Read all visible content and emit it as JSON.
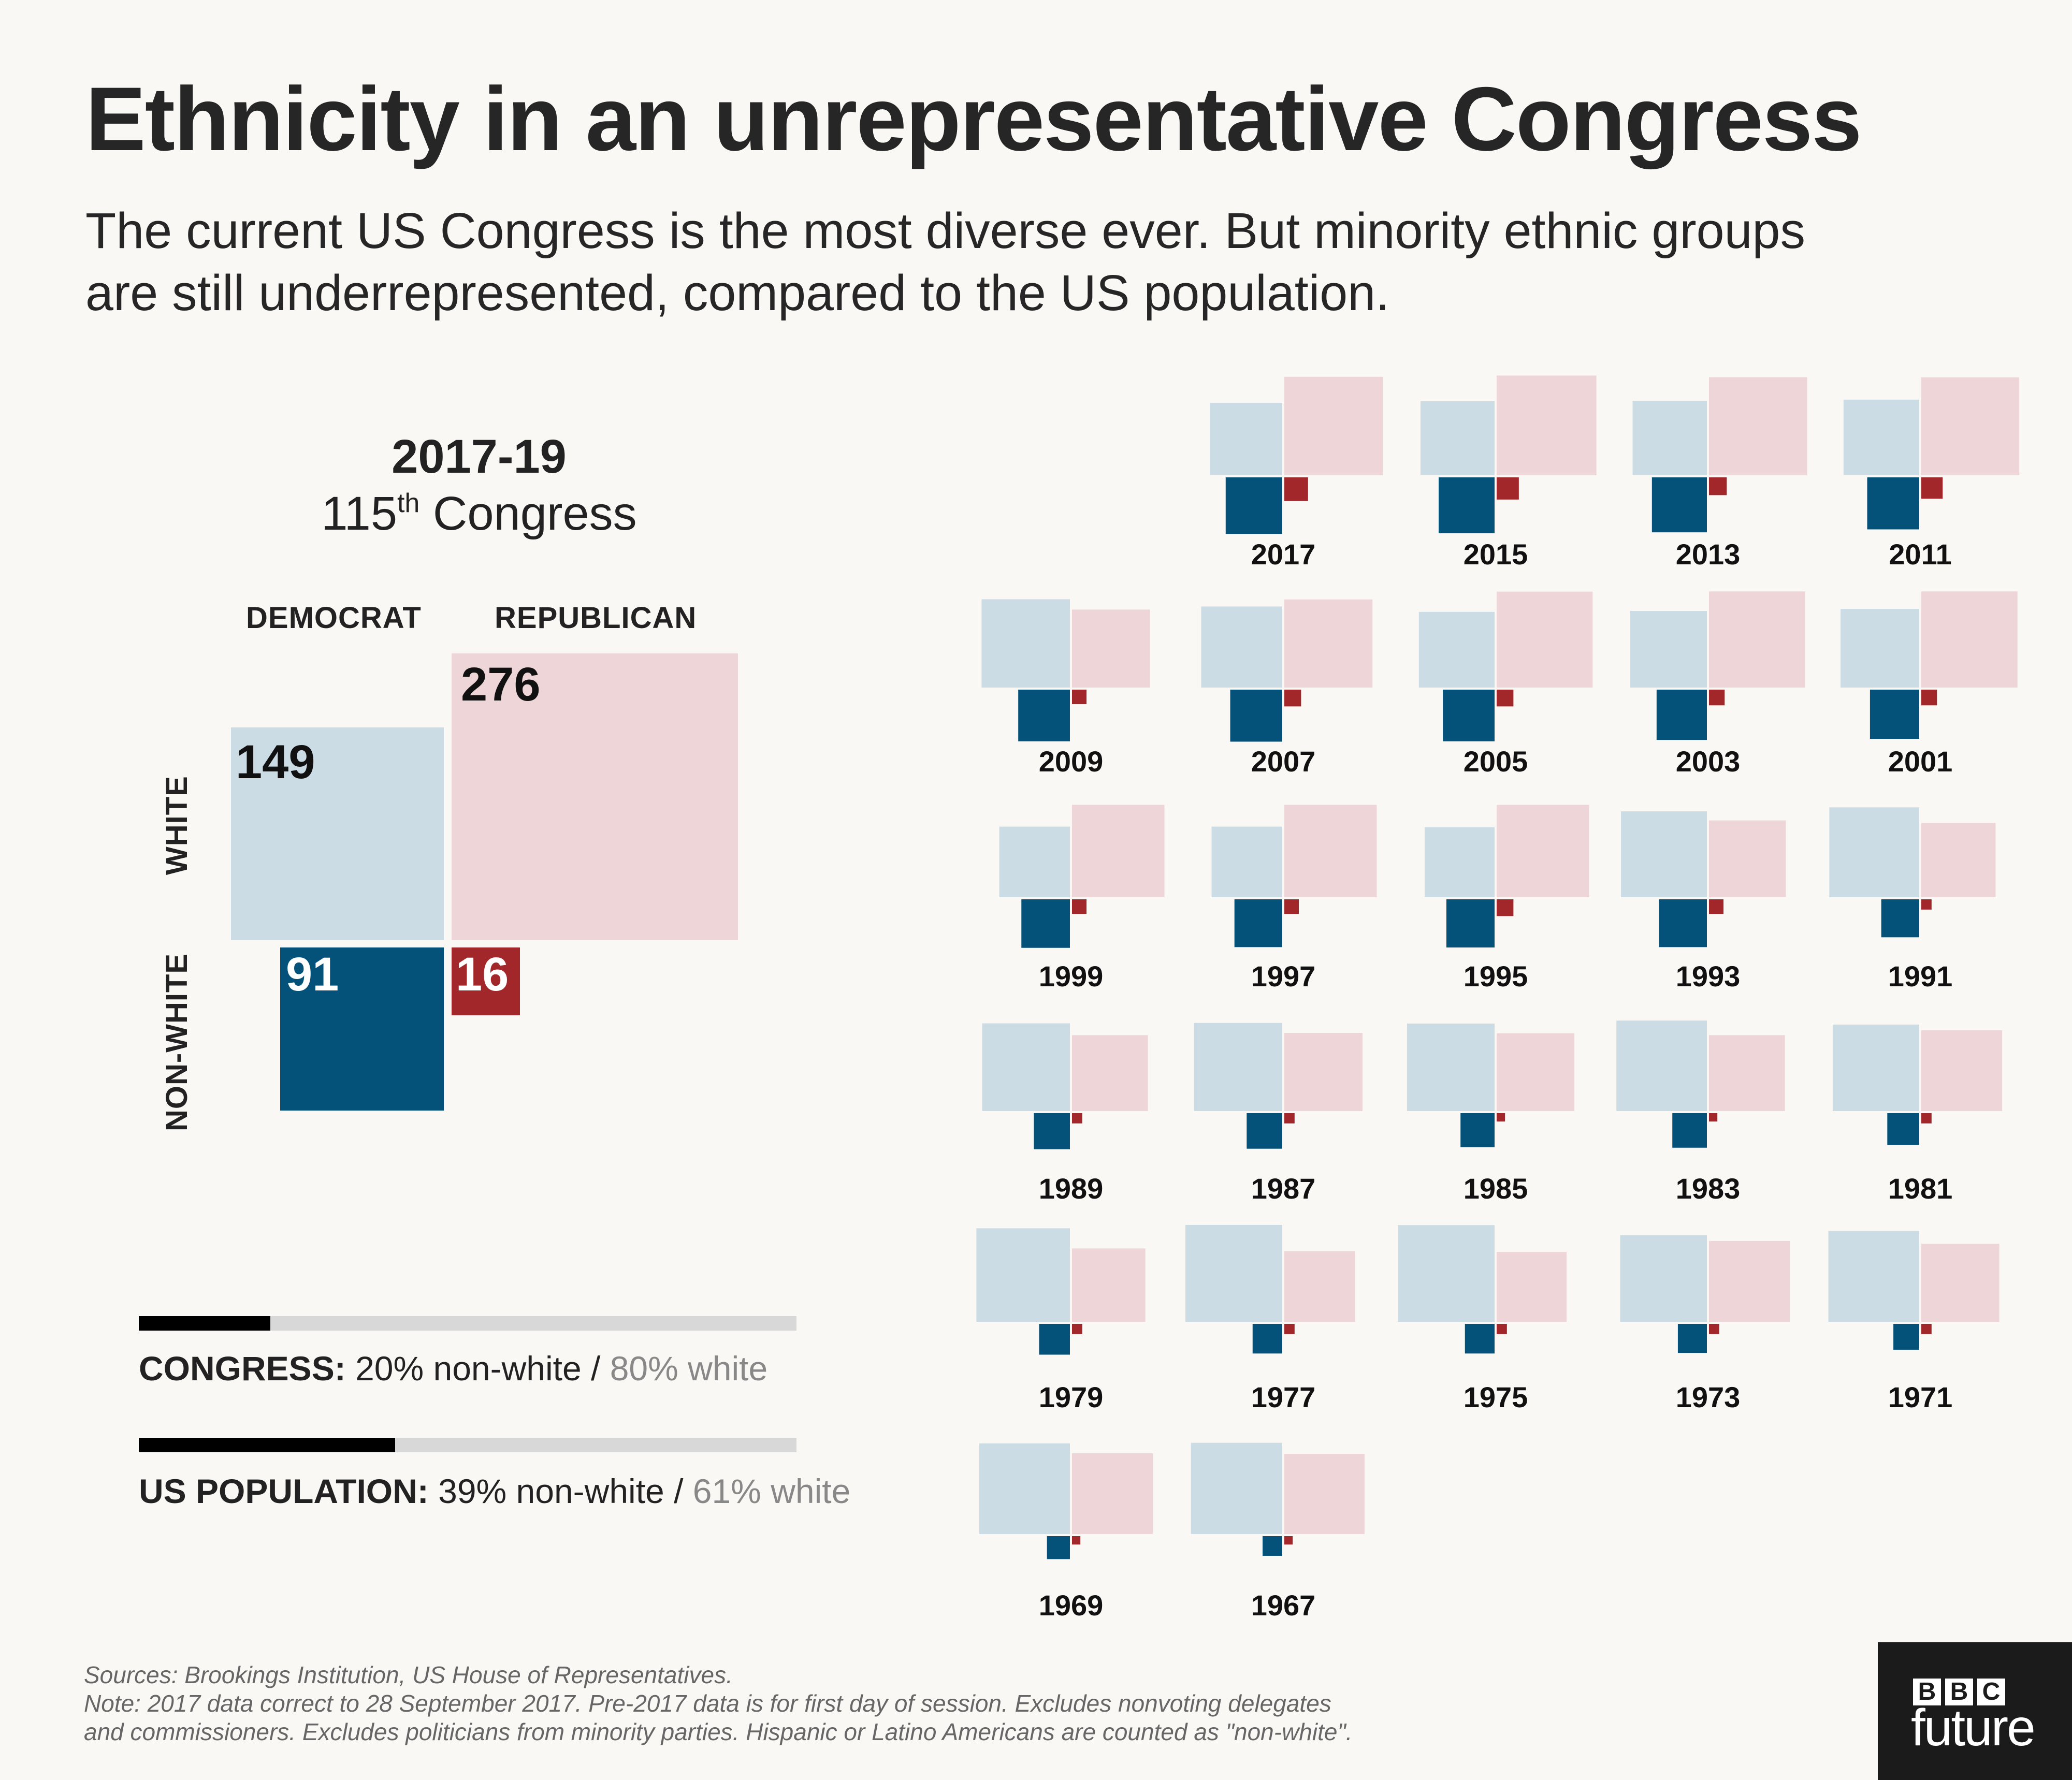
{
  "title": "Ethnicity in an unrepresentative Congress",
  "subtitle_line1": "The current US Congress is the most diverse ever. But minority ethnic groups",
  "subtitle_line2": "are still underrepresented, compared to the US population.",
  "main": {
    "period": "2017-19",
    "congress_number": "115",
    "congress_suffix": "th",
    "congress_word": "Congress",
    "col_democrat": "DEMOCRAT",
    "col_republican": "REPUBLICAN",
    "row_white": "WHITE",
    "row_nonwhite": "NON-WHITE",
    "dem_white": "149",
    "rep_white": "276",
    "dem_nonwhite": "91",
    "rep_nonwhite": "16"
  },
  "stats": {
    "congress_label": "CONGRESS:",
    "congress_nonwhite": "20% non-white",
    "congress_sep": "/",
    "congress_white": "80% white",
    "congress_nonwhite_share": 0.2,
    "population_label": "US POPULATION:",
    "population_nonwhite": "39% non-white",
    "population_sep": "/",
    "population_white": "61% white",
    "population_nonwhite_share": 0.39
  },
  "footer": {
    "line1": "Sources: Brookings Institution, US House of Representatives.",
    "line2": "Note: 2017 data correct to 28 September 2017. Pre-2017 data is for first day of session. Excludes nonvoting delegates",
    "line3": "and commissioners. Excludes politicians from minority parties. Hispanic or Latino Americans are counted as \"non-white\"."
  },
  "logo": {
    "letters": [
      "B",
      "B",
      "C"
    ],
    "word": "future"
  },
  "colors": {
    "dem_white": "#ccdce5",
    "rep_white": "#edd5d8",
    "dem_nonwhite": "#04527a",
    "rep_nonwhite": "#a2272b",
    "background": "#faf8f4"
  },
  "chart_data": {
    "type": "area",
    "title": "Ethnicity in an unrepresentative Congress",
    "categories": [
      "Democrat white",
      "Republican white",
      "Democrat non-white",
      "Republican non-white"
    ],
    "years": [
      {
        "year": "2017",
        "dem_white": 149,
        "rep_white": 276,
        "dem_nonwhite": 91,
        "rep_nonwhite": 16
      },
      {
        "year": "2015",
        "dem_white": 156,
        "rep_white": 283,
        "dem_nonwhite": 89,
        "rep_nonwhite": 14
      },
      {
        "year": "2013",
        "dem_white": 157,
        "rep_white": 274,
        "dem_nonwhite": 86,
        "rep_nonwhite": 9
      },
      {
        "year": "2011",
        "dem_white": 163,
        "rep_white": 273,
        "dem_nonwhite": 77,
        "rep_nonwhite": 13
      },
      {
        "year": "2009",
        "dem_white": 222,
        "rep_white": 173,
        "dem_nonwhite": 76,
        "rep_nonwhite": 6
      },
      {
        "year": "2007",
        "dem_white": 187,
        "rep_white": 221,
        "dem_nonwhite": 77,
        "rep_nonwhite": 8
      },
      {
        "year": "2005",
        "dem_white": 163,
        "rep_white": 262,
        "dem_nonwhite": 76,
        "rep_nonwhite": 8
      },
      {
        "year": "2003",
        "dem_white": 167,
        "rep_white": 263,
        "dem_nonwhite": 72,
        "rep_nonwhite": 7
      },
      {
        "year": "2001",
        "dem_white": 176,
        "rep_white": 263,
        "dem_nonwhite": 69,
        "rep_nonwhite": 7
      },
      {
        "year": "1999",
        "dem_white": 142,
        "rep_white": 243,
        "dem_nonwhite": 67,
        "rep_nonwhite": 6
      },
      {
        "year": "1997",
        "dem_white": 142,
        "rep_white": 243,
        "dem_nonwhite": 65,
        "rep_nonwhite": 6
      },
      {
        "year": "1995",
        "dem_white": 139,
        "rep_white": 243,
        "dem_nonwhite": 66,
        "rep_nonwhite": 8
      },
      {
        "year": "1993",
        "dem_white": 210,
        "rep_white": 168,
        "dem_nonwhite": 65,
        "rep_nonwhite": 6
      },
      {
        "year": "1991",
        "dem_white": 230,
        "rep_white": 157,
        "dem_nonwhite": 41,
        "rep_nonwhite": 3
      },
      {
        "year": "1989",
        "dem_white": 219,
        "rep_white": 164,
        "dem_nonwhite": 37,
        "rep_nonwhite": 3
      },
      {
        "year": "1987",
        "dem_white": 221,
        "rep_white": 174,
        "dem_nonwhite": 36,
        "rep_nonwhite": 3
      },
      {
        "year": "1985",
        "dem_white": 218,
        "rep_white": 172,
        "dem_nonwhite": 33,
        "rep_nonwhite": 2
      },
      {
        "year": "1983",
        "dem_white": 233,
        "rep_white": 164,
        "dem_nonwhite": 34,
        "rep_nonwhite": 2
      },
      {
        "year": "1981",
        "dem_white": 213,
        "rep_white": 186,
        "dem_nonwhite": 29,
        "rep_nonwhite": 3
      },
      {
        "year": "1979",
        "dem_white": 249,
        "rep_white": 153,
        "dem_nonwhite": 27,
        "rep_nonwhite": 3
      },
      {
        "year": "1977",
        "dem_white": 267,
        "rep_white": 142,
        "dem_nonwhite": 25,
        "rep_nonwhite": 3
      },
      {
        "year": "1975",
        "dem_white": 266,
        "rep_white": 139,
        "dem_nonwhite": 25,
        "rep_nonwhite": 3
      },
      {
        "year": "1973",
        "dem_white": 214,
        "rep_white": 186,
        "dem_nonwhite": 24,
        "rep_nonwhite": 3
      },
      {
        "year": "1971",
        "dem_white": 235,
        "rep_white": 173,
        "dem_nonwhite": 19,
        "rep_nonwhite": 3
      },
      {
        "year": "1969",
        "dem_white": 234,
        "rep_white": 186,
        "dem_nonwhite": 15,
        "rep_nonwhite": 2
      },
      {
        "year": "1967",
        "dem_white": 237,
        "rep_white": 183,
        "dem_nonwhite": 11,
        "rep_nonwhite": 2
      }
    ]
  }
}
